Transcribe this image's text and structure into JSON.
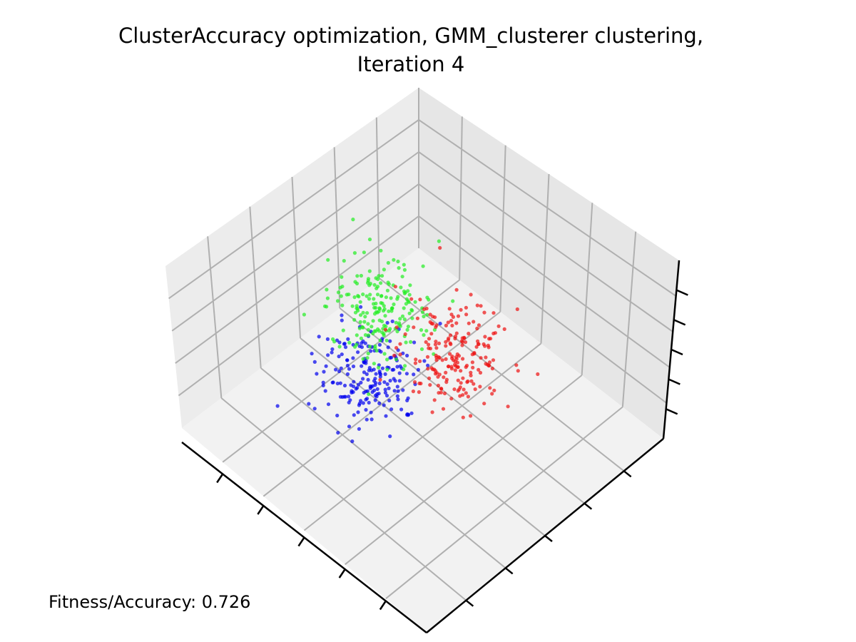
{
  "title_line1": "ClusterAccuracy optimization, GMM_clusterer clustering,",
  "title_line2": "Iteration 4",
  "fitness_text": "Fitness/Accuracy: 0.726",
  "colors": {
    "pane": "#f2f2f2",
    "grid": "#b0b0b0",
    "axis": "#000000",
    "cluster_blue": "#0000ee",
    "cluster_green": "#22ee22",
    "cluster_red": "#ee1111"
  },
  "chart_data": {
    "type": "scatter",
    "projection": "3d",
    "title": "ClusterAccuracy optimization, GMM_clusterer clustering, Iteration 4",
    "grid": true,
    "tick_labels_visible": false,
    "series": [
      {
        "color": "blue",
        "count": 200,
        "center": [
          -0.6,
          0.35,
          0.0
        ],
        "spread": 0.35
      },
      {
        "color": "green",
        "count": 200,
        "center": [
          -0.45,
          -0.55,
          0.0
        ],
        "spread": 0.35
      },
      {
        "color": "red",
        "count": 200,
        "center": [
          0.55,
          0.05,
          0.0
        ],
        "spread": 0.35
      }
    ],
    "annotation": "Fitness/Accuracy: 0.726"
  }
}
